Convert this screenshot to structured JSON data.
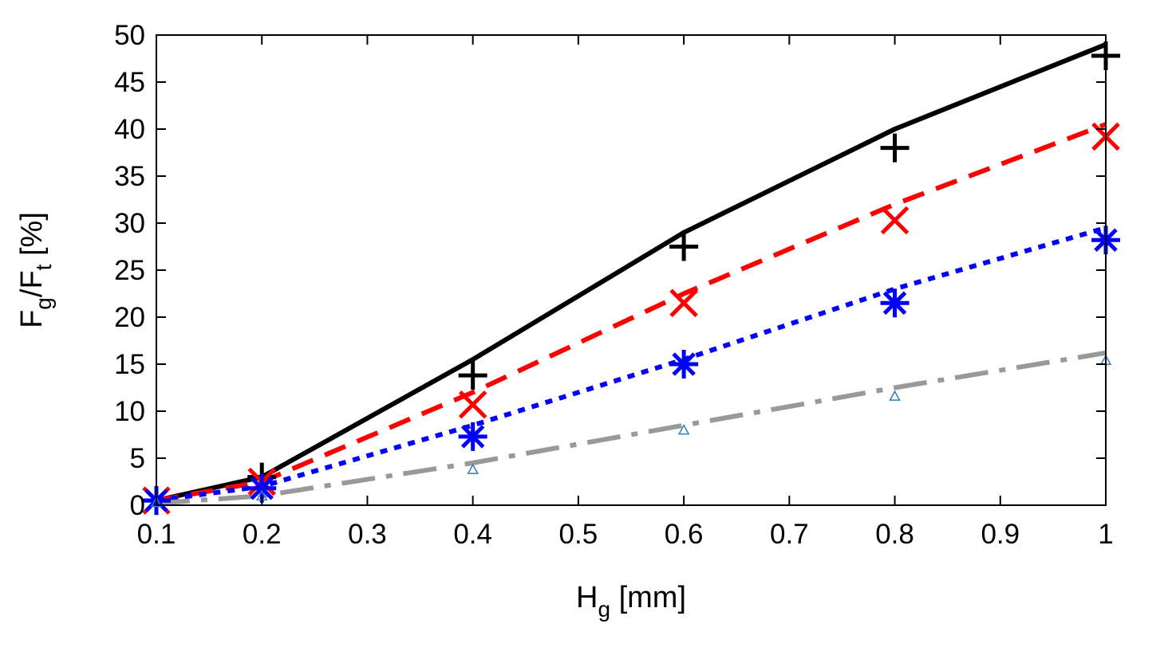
{
  "chart_data": {
    "type": "line",
    "title": "",
    "xlabel": {
      "main": "H",
      "sub": "g",
      "unit": " [mm]"
    },
    "ylabel": {
      "num_main": "F",
      "num_sub": "g",
      "slash": "/",
      "den_main": "F",
      "den_sub": "t",
      "unit": " [%]"
    },
    "xlim": [
      0.1,
      1.0
    ],
    "ylim": [
      0,
      50
    ],
    "x_ticks": [
      "0.1",
      "0.2",
      "0.3",
      "0.4",
      "0.5",
      "0.6",
      "0.7",
      "0.8",
      "0.9",
      "1"
    ],
    "y_ticks": [
      "0",
      "5",
      "10",
      "15",
      "20",
      "25",
      "30",
      "35",
      "40",
      "45",
      "50"
    ],
    "x": [
      0.1,
      0.2,
      0.4,
      0.6,
      0.8,
      1.0
    ],
    "grid": false,
    "series": [
      {
        "name": "line-1",
        "style": "solid",
        "color": "#000000",
        "values": [
          0.5,
          3.0,
          15.5,
          29.0,
          40.0,
          49.0
        ]
      },
      {
        "name": "line-2",
        "style": "dashed",
        "color": "#ff0000",
        "values": [
          0.5,
          2.5,
          12.0,
          22.5,
          32.0,
          40.5
        ]
      },
      {
        "name": "line-3",
        "style": "dotted",
        "color": "#0000ff",
        "values": [
          0.5,
          2.0,
          8.5,
          15.5,
          23.0,
          29.5
        ]
      },
      {
        "name": "line-4",
        "style": "dashdot",
        "color": "#999999",
        "values": [
          0.2,
          1.0,
          4.5,
          8.5,
          12.5,
          16.2
        ]
      },
      {
        "name": "points-plus",
        "marker": "plus",
        "color": "#000000",
        "values": [
          0.5,
          3.0,
          13.8,
          27.5,
          38.0,
          47.8
        ]
      },
      {
        "name": "points-cross",
        "marker": "cross",
        "color": "#ff0000",
        "values": [
          0.5,
          2.5,
          10.7,
          21.5,
          30.3,
          39.2
        ]
      },
      {
        "name": "points-star",
        "marker": "star",
        "color": "#0000ff",
        "values": [
          0.5,
          1.8,
          7.3,
          15.0,
          21.5,
          28.2
        ]
      },
      {
        "name": "points-triangle",
        "marker": "triangle",
        "color": "#2a7fc0",
        "values": [
          0.3,
          1.0,
          3.8,
          8.0,
          11.6,
          15.4
        ]
      }
    ]
  }
}
